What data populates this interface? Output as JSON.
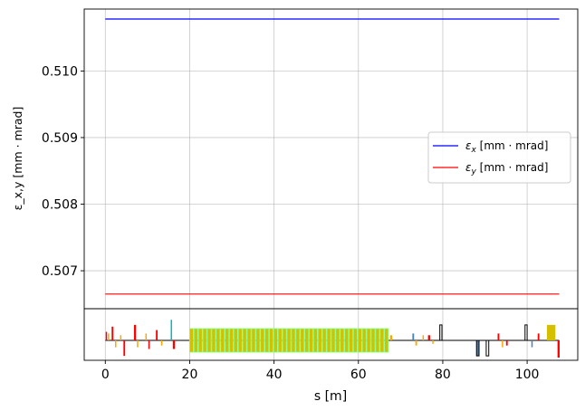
{
  "chart_data": [
    {
      "type": "line",
      "ylabel": "ε_x,y [mm · mrad]",
      "xlim": [
        -5,
        112
      ],
      "ylim": [
        0.50643,
        0.51093
      ],
      "grid": true,
      "legend_position": "center-right",
      "yticks": [
        0.507,
        0.508,
        0.509,
        0.51
      ],
      "ytick_labels": [
        "0.507",
        "0.508",
        "0.509",
        "0.510"
      ],
      "series": [
        {
          "name": "ε_x [mm · mrad]",
          "legend_main": "ε",
          "legend_sub": "x",
          "legend_rest": " [mm · mrad]",
          "color": "#0000ff",
          "x": [
            0,
            107.6
          ],
          "y": [
            0.51078,
            0.51078
          ]
        },
        {
          "name": "ε_y [mm · mrad]",
          "legend_main": "ε",
          "legend_sub": "y",
          "legend_rest": " [mm · mrad]",
          "color": "#ff0000",
          "x": [
            0,
            107.6
          ],
          "y": [
            0.50665,
            0.50665
          ]
        }
      ]
    },
    {
      "type": "lattice",
      "xlabel": "s [m]",
      "xticks": [
        0,
        20,
        40,
        60,
        80,
        100
      ],
      "xtick_labels": [
        "0",
        "20",
        "40",
        "60",
        "80",
        "100"
      ],
      "beamline_range": [
        0,
        107.6
      ],
      "elements": [
        {
          "s": 0.1,
          "w": 0.3,
          "kind": "quad",
          "color": "#ff0000",
          "h": 0.5
        },
        {
          "s": 0.6,
          "w": 0.3,
          "kind": "sext",
          "color": "#ffa500",
          "h": 0.4
        },
        {
          "s": 1.5,
          "w": 0.4,
          "kind": "quad",
          "color": "#ff0000",
          "h": 0.8
        },
        {
          "s": 2.3,
          "w": 0.3,
          "kind": "sext",
          "color": "#ffa500",
          "h": -0.4
        },
        {
          "s": 3.5,
          "w": 0.3,
          "kind": "sext",
          "color": "#ffa500",
          "h": 0.3
        },
        {
          "s": 4.3,
          "w": 0.4,
          "kind": "quad",
          "color": "#ff0000",
          "h": -0.9
        },
        {
          "s": 6.8,
          "w": 0.5,
          "kind": "quad",
          "color": "#ff0000",
          "h": 0.9
        },
        {
          "s": 7.5,
          "w": 0.3,
          "kind": "sext",
          "color": "#ffa500",
          "h": -0.4
        },
        {
          "s": 9.5,
          "w": 0.3,
          "kind": "sext",
          "color": "#ffa500",
          "h": 0.4
        },
        {
          "s": 10.2,
          "w": 0.3,
          "kind": "quad",
          "color": "#ff0000",
          "h": -0.5
        },
        {
          "s": 12.0,
          "w": 0.4,
          "kind": "quad",
          "color": "#ff0000",
          "h": 0.6
        },
        {
          "s": 13.2,
          "w": 0.3,
          "kind": "sext",
          "color": "#ffa500",
          "h": -0.3
        },
        {
          "s": 15.5,
          "w": 0.3,
          "kind": "corrector",
          "color": "#00bfbf",
          "h": 1.2
        },
        {
          "s": 16.0,
          "w": 0.5,
          "kind": "quad",
          "color": "#ff0000",
          "h": -0.5
        }
      ],
      "dipole_block": {
        "start": 20,
        "end": 67,
        "color": "#d4c000",
        "edge_color": "#80ff80"
      },
      "tail_elements": [
        {
          "s": 67.5,
          "w": 0.5,
          "kind": "sext",
          "color": "#ffa500",
          "h": 0.3
        },
        {
          "s": 72.8,
          "w": 0.4,
          "kind": "quad",
          "color": "#4682b4",
          "h": 0.4
        },
        {
          "s": 73.5,
          "w": 0.4,
          "kind": "sext",
          "color": "#ffa500",
          "h": -0.3
        },
        {
          "s": 75.2,
          "w": 0.3,
          "kind": "sext",
          "color": "#ffa500",
          "h": 0.3
        },
        {
          "s": 76.5,
          "w": 0.5,
          "kind": "quad",
          "color": "#ff0000",
          "h": 0.3
        },
        {
          "s": 77.5,
          "w": 0.3,
          "kind": "sext",
          "color": "#ffa500",
          "h": -0.2
        },
        {
          "s": 79.3,
          "w": 0.5,
          "kind": "box",
          "color": "#ffffff",
          "h": 0.9
        },
        {
          "s": 88.0,
          "w": 0.6,
          "kind": "box",
          "color": "#4682b4",
          "h": -0.9
        },
        {
          "s": 90.3,
          "w": 0.6,
          "kind": "box",
          "color": "#ffffff",
          "h": -0.9
        },
        {
          "s": 93.0,
          "w": 0.4,
          "kind": "quad",
          "color": "#ff0000",
          "h": 0.4
        },
        {
          "s": 94.0,
          "w": 0.3,
          "kind": "sext",
          "color": "#ffa500",
          "h": -0.4
        },
        {
          "s": 95.0,
          "w": 0.4,
          "kind": "quad",
          "color": "#ff0000",
          "h": -0.3
        },
        {
          "s": 99.5,
          "w": 0.5,
          "kind": "box",
          "color": "#ffffff",
          "h": 0.9
        },
        {
          "s": 101.0,
          "w": 0.3,
          "kind": "quad",
          "color": "#4682b4",
          "h": -0.4
        },
        {
          "s": 102.5,
          "w": 0.4,
          "kind": "quad",
          "color": "#ff0000",
          "h": 0.4
        },
        {
          "s": 104.7,
          "w": 2.0,
          "kind": "dipole",
          "color": "#d4c000",
          "h": 0.9
        },
        {
          "s": 107.2,
          "w": 0.5,
          "kind": "quad",
          "color": "#ff0000",
          "h": -1.0
        }
      ]
    }
  ]
}
